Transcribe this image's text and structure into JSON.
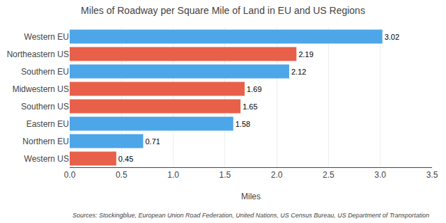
{
  "chart_data": {
    "type": "bar",
    "orientation": "horizontal",
    "title": "Miles of Roadway per Square Mile of Land in EU and US Regions",
    "xlabel": "Miles",
    "categories": [
      "Western EU",
      "Northeastern US",
      "Southern EU",
      "Midwestern US",
      "Southern US",
      "Eastern EU",
      "Northern EU",
      "Western US"
    ],
    "values": [
      3.02,
      2.19,
      2.12,
      1.69,
      1.65,
      1.58,
      0.71,
      0.45
    ],
    "colors": [
      "#4da6e8",
      "#e8604a",
      "#4da6e8",
      "#e8604a",
      "#e8604a",
      "#4da6e8",
      "#4da6e8",
      "#e8604a"
    ],
    "xlim": [
      0,
      3.5
    ],
    "xticks": [
      {
        "value": 0,
        "label": "0.0"
      },
      0.5,
      {
        "value": 1,
        "label": "1.0"
      },
      1.5,
      {
        "value": 2,
        "label": "2.0"
      },
      2.5,
      {
        "value": 3,
        "label": "3.0"
      },
      3.5
    ],
    "grid": true,
    "data_labels": true,
    "annotations": [
      "Sources: Stockingblue, European Union Road Federation, United Nations, US Census Bureau, US Department of Transportation"
    ]
  }
}
